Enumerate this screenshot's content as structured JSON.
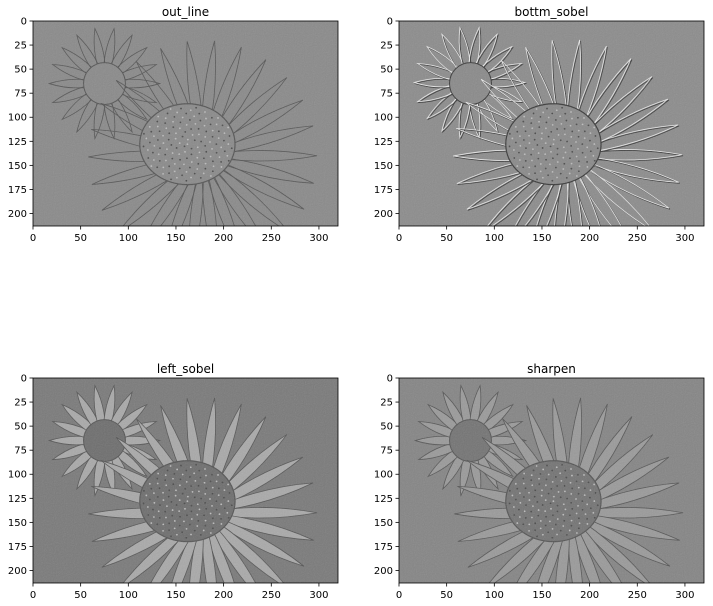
{
  "figure": {
    "colors": {
      "frame": "#000000",
      "background": "#ffffff"
    }
  },
  "chart_data": [
    {
      "type": "image",
      "title": "out_line",
      "cmap": "gray",
      "image_size": [
        320,
        213
      ],
      "xlim": [
        0,
        320
      ],
      "ylim": [
        213,
        0
      ],
      "xticks": [
        0,
        50,
        100,
        150,
        200,
        250,
        300
      ],
      "yticks": [
        0,
        25,
        50,
        75,
        100,
        125,
        150,
        175,
        200
      ],
      "mean_gray": "#8a8a8a",
      "style": "outline"
    },
    {
      "type": "image",
      "title": "bottm_sobel",
      "cmap": "gray",
      "image_size": [
        320,
        213
      ],
      "xlim": [
        0,
        320
      ],
      "ylim": [
        213,
        0
      ],
      "xticks": [
        0,
        50,
        100,
        150,
        200,
        250,
        300
      ],
      "yticks": [
        0,
        25,
        50,
        75,
        100,
        125,
        150,
        175,
        200
      ],
      "mean_gray": "#8c8c8c",
      "style": "emboss"
    },
    {
      "type": "image",
      "title": "left_sobel",
      "cmap": "gray",
      "image_size": [
        320,
        213
      ],
      "xlim": [
        0,
        320
      ],
      "ylim": [
        213,
        0
      ],
      "xticks": [
        0,
        50,
        100,
        150,
        200,
        250,
        300
      ],
      "yticks": [
        0,
        25,
        50,
        75,
        100,
        125,
        150,
        175,
        200
      ],
      "mean_gray": "#7a7a7a",
      "style": "lightfill"
    },
    {
      "type": "image",
      "title": "sharpen",
      "cmap": "gray",
      "image_size": [
        320,
        213
      ],
      "xlim": [
        0,
        320
      ],
      "ylim": [
        213,
        0
      ],
      "xticks": [
        0,
        50,
        100,
        150,
        200,
        250,
        300
      ],
      "yticks": [
        0,
        25,
        50,
        75,
        100,
        125,
        150,
        175,
        200
      ],
      "mean_gray": "#858585",
      "style": "sharpen"
    }
  ]
}
